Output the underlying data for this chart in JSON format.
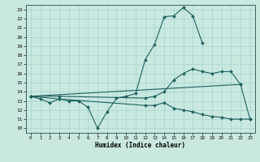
{
  "xlabel": "Humidex (Indice chaleur)",
  "bg_color": "#c8e8e0",
  "grid_color": "#a8d4cc",
  "line_color": "#206060",
  "xlim": [
    -0.5,
    23.5
  ],
  "ylim": [
    9.5,
    23.5
  ],
  "yticks": [
    10,
    11,
    12,
    13,
    14,
    15,
    16,
    17,
    18,
    19,
    20,
    21,
    22,
    23
  ],
  "xticks": [
    0,
    1,
    2,
    3,
    4,
    5,
    6,
    7,
    8,
    9,
    10,
    11,
    12,
    13,
    14,
    15,
    16,
    17,
    18,
    19,
    20,
    21,
    22,
    23
  ],
  "series1_x": [
    0,
    1,
    2,
    3,
    4,
    5,
    6,
    7,
    8,
    9,
    10,
    11,
    12,
    13,
    14,
    15,
    16,
    17,
    18
  ],
  "series1_y": [
    13.5,
    13.2,
    12.8,
    13.2,
    13.0,
    13.0,
    12.3,
    10.0,
    11.8,
    13.3,
    13.5,
    13.8,
    17.5,
    19.2,
    22.2,
    22.3,
    23.2,
    22.3,
    19.3
  ],
  "series2_x": [
    0,
    3,
    12,
    13,
    14,
    15,
    16,
    17,
    18,
    19,
    20,
    21,
    22
  ],
  "series2_y": [
    13.5,
    13.5,
    13.3,
    13.5,
    14.0,
    15.3,
    16.0,
    16.5,
    16.2,
    16.0,
    16.2,
    16.2,
    14.8
  ],
  "series3_x": [
    0,
    3,
    12,
    13,
    14,
    15,
    16,
    17,
    18,
    19,
    20,
    21,
    22,
    23
  ],
  "series3_y": [
    13.5,
    13.2,
    12.5,
    12.5,
    12.8,
    12.2,
    12.0,
    11.8,
    11.5,
    11.3,
    11.2,
    11.0,
    11.0,
    11.0
  ],
  "series4_x": [
    0,
    22,
    23
  ],
  "series4_y": [
    13.5,
    14.8,
    11.0
  ]
}
